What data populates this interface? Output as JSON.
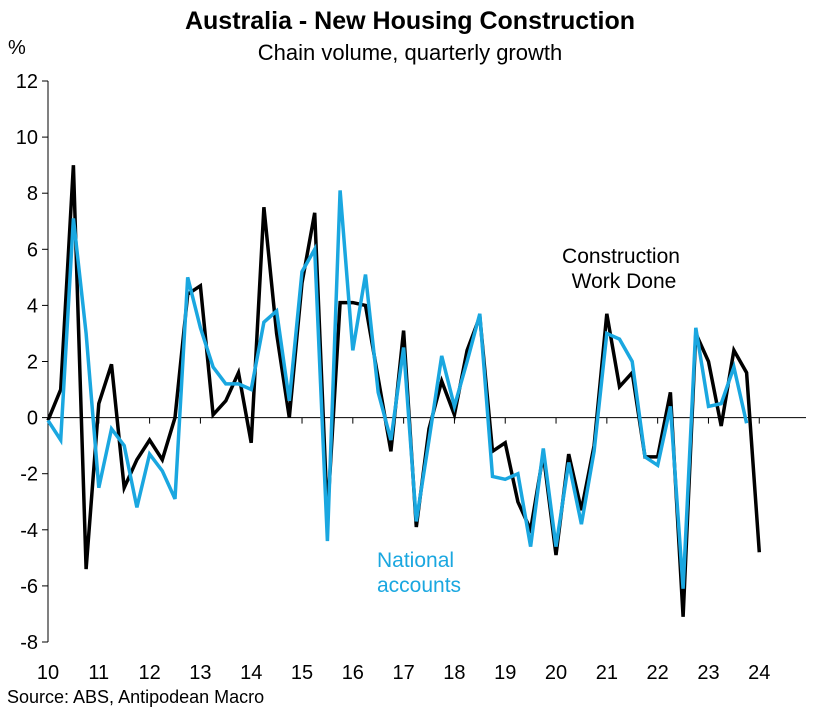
{
  "chart_data": {
    "type": "line",
    "title": "Australia - New Housing Construction",
    "subtitle": "Chain volume, quarterly growth",
    "ylabel": "%",
    "ylim": [
      -8,
      12
    ],
    "yticks": [
      -8,
      -6,
      -4,
      -2,
      0,
      2,
      4,
      6,
      8,
      10,
      12
    ],
    "xlim": [
      2010,
      2024.92
    ],
    "xticks": [
      2010,
      2011,
      2012,
      2013,
      2014,
      2015,
      2016,
      2017,
      2018,
      2019,
      2020,
      2021,
      2022,
      2023,
      2024
    ],
    "xtick_labels": [
      "10",
      "11",
      "12",
      "13",
      "14",
      "15",
      "16",
      "17",
      "18",
      "19",
      "20",
      "21",
      "22",
      "23",
      "24"
    ],
    "series": [
      {
        "name": "Construction Work Done",
        "label_lines": [
          "Construction",
          "Work Done"
        ],
        "color": "#000000",
        "x": [
          2010.0,
          2010.25,
          2010.5,
          2010.75,
          2011.0,
          2011.25,
          2011.5,
          2011.75,
          2012.0,
          2012.25,
          2012.5,
          2012.75,
          2013.0,
          2013.25,
          2013.5,
          2013.75,
          2014.0,
          2014.25,
          2014.5,
          2014.75,
          2015.0,
          2015.25,
          2015.5,
          2015.75,
          2016.0,
          2016.25,
          2016.5,
          2016.75,
          2017.0,
          2017.25,
          2017.5,
          2017.75,
          2018.0,
          2018.25,
          2018.5,
          2018.75,
          2019.0,
          2019.25,
          2019.5,
          2019.75,
          2020.0,
          2020.25,
          2020.5,
          2020.75,
          2021.0,
          2021.25,
          2021.5,
          2021.75,
          2022.0,
          2022.25,
          2022.5,
          2022.75,
          2023.0,
          2023.25,
          2023.5,
          2023.75,
          2024.0
        ],
        "values": [
          -0.1,
          1.0,
          9.0,
          -5.4,
          0.5,
          1.9,
          -2.5,
          -1.5,
          -0.8,
          -1.5,
          0.0,
          4.4,
          4.7,
          0.1,
          0.6,
          1.6,
          -0.9,
          7.5,
          3.0,
          0.0,
          4.8,
          7.3,
          -3.5,
          4.1,
          4.1,
          4.0,
          1.4,
          -1.2,
          3.1,
          -3.9,
          -0.4,
          1.3,
          0.1,
          2.4,
          3.6,
          -1.2,
          -0.9,
          -3.0,
          -4.0,
          -1.3,
          -4.9,
          -1.3,
          -3.3,
          -1.0,
          3.7,
          1.1,
          1.6,
          -1.4,
          -1.4,
          0.9,
          -7.1,
          3.0,
          2.0,
          -0.3,
          2.4,
          1.6,
          -4.8
        ]
      },
      {
        "name": "National accounts",
        "label_lines": [
          "National",
          "accounts"
        ],
        "color": "#1aa7e0",
        "x": [
          2010.0,
          2010.25,
          2010.5,
          2010.75,
          2011.0,
          2011.25,
          2011.5,
          2011.75,
          2012.0,
          2012.25,
          2012.5,
          2012.75,
          2013.0,
          2013.25,
          2013.5,
          2013.75,
          2014.0,
          2014.25,
          2014.5,
          2014.75,
          2015.0,
          2015.25,
          2015.5,
          2015.75,
          2016.0,
          2016.25,
          2016.5,
          2016.75,
          2017.0,
          2017.25,
          2017.5,
          2017.75,
          2018.0,
          2018.25,
          2018.5,
          2018.75,
          2019.0,
          2019.25,
          2019.5,
          2019.75,
          2020.0,
          2020.25,
          2020.5,
          2020.75,
          2021.0,
          2021.25,
          2021.5,
          2021.75,
          2022.0,
          2022.25,
          2022.5,
          2022.75,
          2023.0,
          2023.25,
          2023.5,
          2023.75
        ],
        "values": [
          -0.1,
          -0.8,
          7.1,
          3.0,
          -2.5,
          -0.4,
          -1.0,
          -3.2,
          -1.3,
          -1.9,
          -2.9,
          5.0,
          3.2,
          1.8,
          1.2,
          1.2,
          1.0,
          3.4,
          3.8,
          0.6,
          5.2,
          6.0,
          -4.4,
          8.1,
          2.4,
          5.1,
          0.9,
          -0.8,
          2.5,
          -3.7,
          -0.8,
          2.2,
          0.4,
          2.0,
          3.7,
          -2.1,
          -2.2,
          -2.0,
          -4.6,
          -1.1,
          -4.6,
          -1.6,
          -3.8,
          -1.2,
          3.0,
          2.8,
          2.0,
          -1.4,
          -1.7,
          0.4,
          -6.1,
          3.2,
          0.4,
          0.5,
          1.8,
          -0.2
        ]
      }
    ]
  },
  "source": "Source: ABS, Antipodean Macro"
}
